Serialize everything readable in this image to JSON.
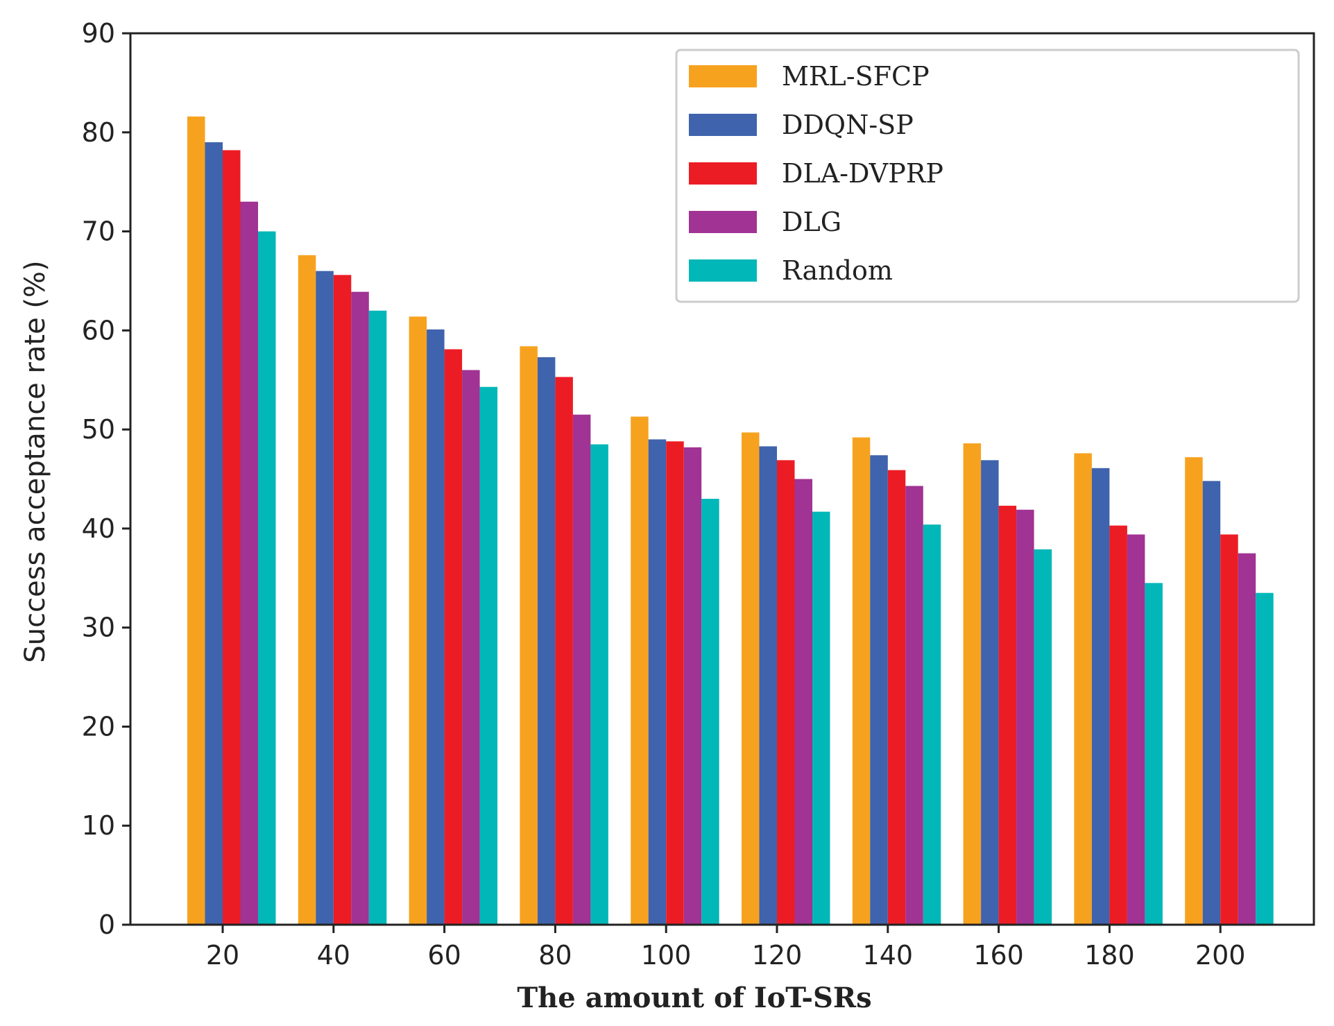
{
  "chart_data": {
    "type": "bar",
    "title": "",
    "xlabel": "The amount of IoT-SRs",
    "ylabel": "Success acceptance rate (%)",
    "ylim": [
      0,
      90
    ],
    "yticks": [
      0,
      10,
      20,
      30,
      40,
      50,
      60,
      70,
      80,
      90
    ],
    "categories": [
      "20",
      "40",
      "60",
      "80",
      "100",
      "120",
      "140",
      "160",
      "180",
      "200"
    ],
    "legend_position": "top-right",
    "series": [
      {
        "name": "MRL-SFCP",
        "color": "#f7a21f",
        "values": [
          81.6,
          67.6,
          61.4,
          58.4,
          51.3,
          49.7,
          49.2,
          48.6,
          47.6,
          47.2
        ]
      },
      {
        "name": "DDQN-SP",
        "color": "#3f63ad",
        "values": [
          79.0,
          66.0,
          60.1,
          57.3,
          49.0,
          48.3,
          47.4,
          46.9,
          46.1,
          44.8
        ]
      },
      {
        "name": "DLA-DVPRP",
        "color": "#ec1c24",
        "values": [
          78.2,
          65.6,
          58.1,
          55.3,
          48.8,
          46.9,
          45.9,
          42.3,
          40.3,
          39.4
        ]
      },
      {
        "name": "DLG",
        "color": "#a03393",
        "values": [
          73.0,
          63.9,
          56.0,
          51.5,
          48.2,
          45.0,
          44.3,
          41.9,
          39.4,
          37.5
        ]
      },
      {
        "name": "Random",
        "color": "#02b7b8",
        "values": [
          70.0,
          62.0,
          54.3,
          48.5,
          43.0,
          41.7,
          40.4,
          37.9,
          34.5,
          33.5
        ]
      }
    ]
  }
}
